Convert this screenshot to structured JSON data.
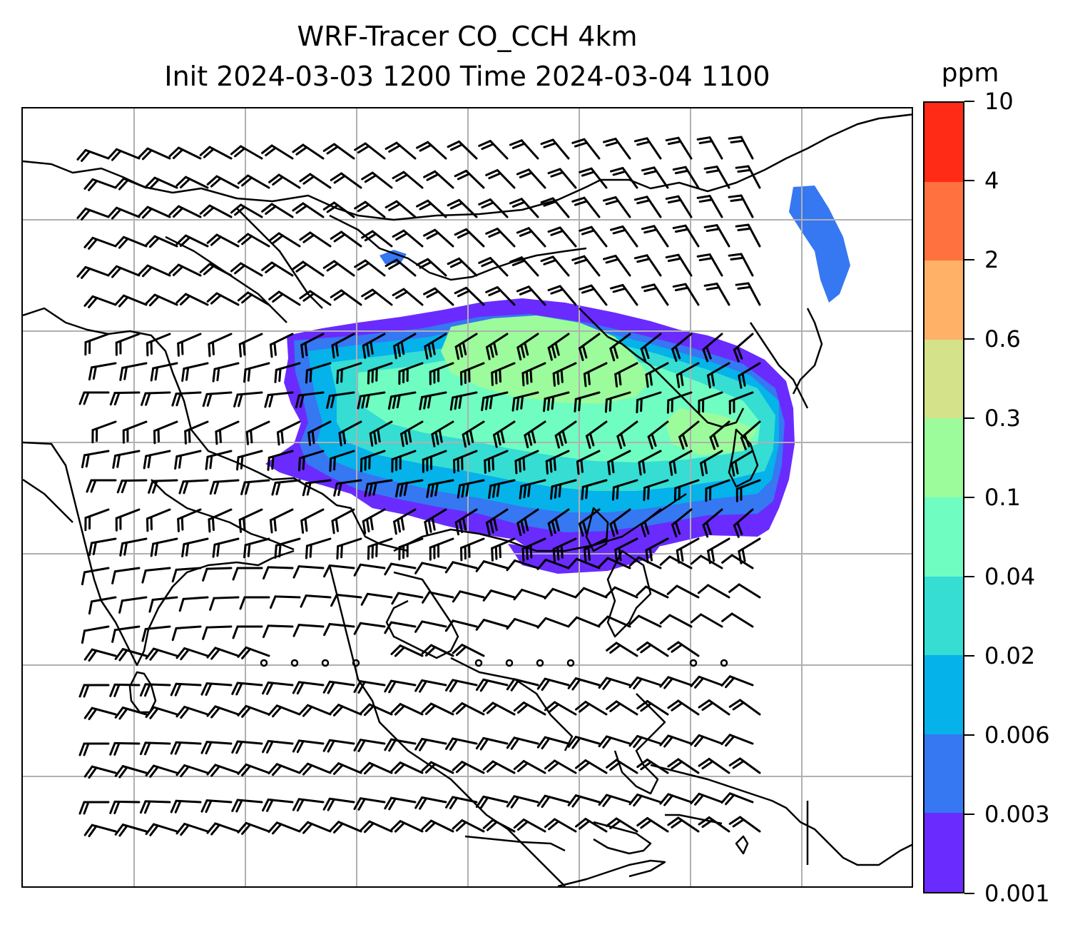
{
  "title_line1": "WRF-Tracer CO_CCH 4km",
  "title_line2": "Init 2024-03-03 1200 Time 2024-03-04 1100",
  "colorbar": {
    "unit": "ppm",
    "levels": [
      "0.001",
      "0.003",
      "0.006",
      "0.02",
      "0.04",
      "0.1",
      "0.3",
      "0.6",
      "2",
      "4",
      "10"
    ],
    "colors": [
      "#6a2bff",
      "#3677f2",
      "#05b2ea",
      "#35ddd3",
      "#6ffdc1",
      "#9cfb9b",
      "#d4e28a",
      "#feb167",
      "#ff7240",
      "#ff2b17"
    ]
  },
  "map": {
    "coastline_color": "#000000",
    "gridline_color": "#b0b0b0",
    "barb_color": "#000000",
    "plume_levels": {
      "outer": "0.001",
      "band": "0.003",
      "mid": "0.006",
      "inner": "0.02",
      "core": "0.04",
      "peak": "0.1"
    }
  }
}
